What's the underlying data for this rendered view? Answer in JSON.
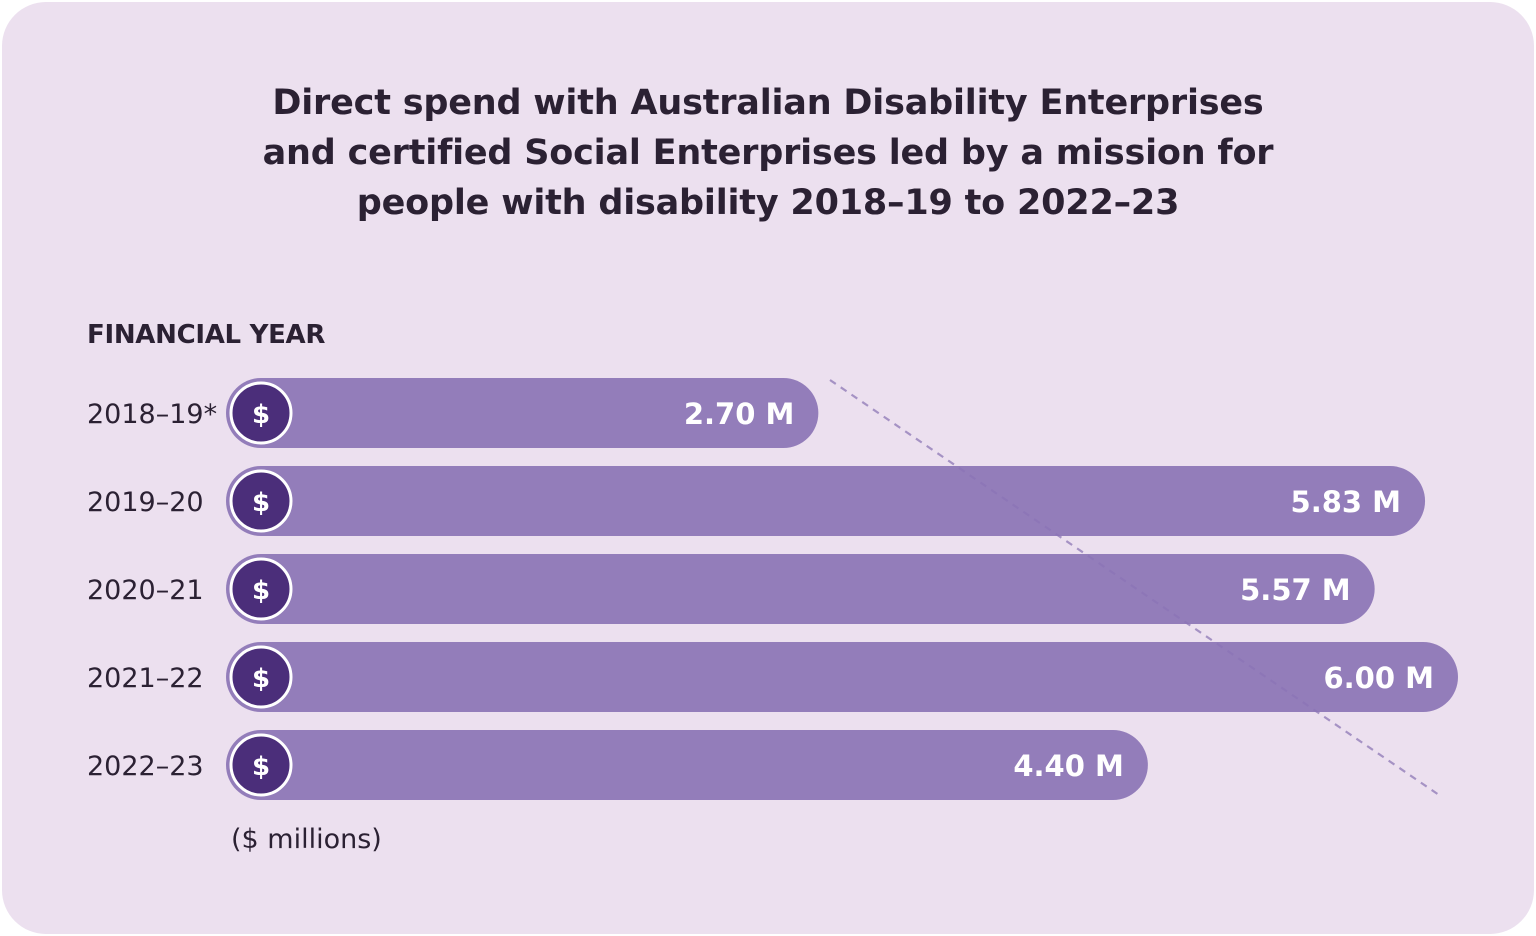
{
  "chart_data": {
    "type": "bar",
    "orientation": "horizontal",
    "title_lines": [
      "Direct spend with Australian Disability Enterprises",
      "and certified Social Enterprises led by a mission for",
      "people with disability 2018–19 to 2022–23"
    ],
    "ylabel": "FINANCIAL YEAR",
    "unit_label": "($ millions)",
    "categories": [
      "2018–19*",
      "2019–20",
      "2020–21",
      "2021–22",
      "2022–23"
    ],
    "values": [
      2.7,
      5.83,
      5.57,
      6.0,
      4.4
    ],
    "value_labels": [
      "2.70 M",
      "5.83 M",
      "5.57 M",
      "6.00 M",
      "4.40 M"
    ],
    "icon_symbol": "$",
    "icon": "dollar-coin-icon",
    "legend": "none",
    "grid": false,
    "colors": {
      "background": "#ece0ef",
      "bar": "#8b74b5",
      "icon_fill": "#4b2e7a",
      "text": "#2b2133",
      "trend_line": "#a592c4"
    }
  }
}
